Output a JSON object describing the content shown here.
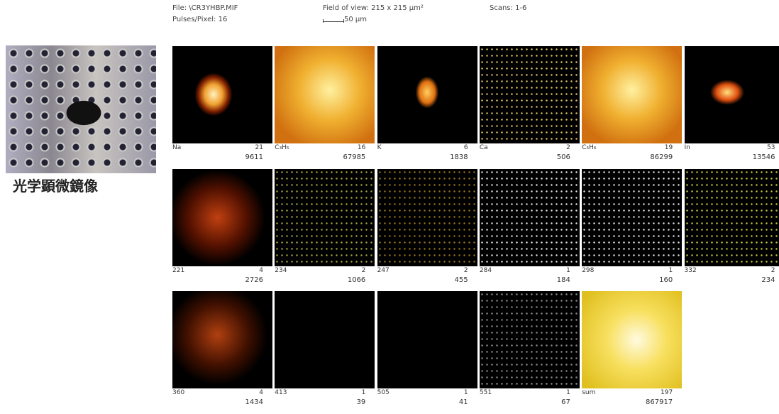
{
  "header": {
    "file": "File: \\CR3YHBP.MIF",
    "pulses": "Pulses/Pixel: 16",
    "field_of_view": "Field of view:  215 x 215  µm²",
    "scale_bar": "50 µm",
    "scans": "Scans:   1-6"
  },
  "microscope": {
    "caption": "光学顕微鏡像"
  },
  "panels": [
    {
      "label": "Na",
      "max": 21,
      "total": 9611
    },
    {
      "label": "C₃H₅",
      "max": 16,
      "total": 67985
    },
    {
      "label": "K",
      "max": 6,
      "total": 1838
    },
    {
      "label": "Ca",
      "max": 2,
      "total": 506
    },
    {
      "label": "C₅H₆",
      "max": 19,
      "total": 86299
    },
    {
      "label": "In",
      "max": 53,
      "total": 13546
    },
    {
      "label": "221",
      "max": 4,
      "total": 2726
    },
    {
      "label": "234",
      "max": 2,
      "total": 1066
    },
    {
      "label": "247",
      "max": 2,
      "total": 455
    },
    {
      "label": "284",
      "max": 1,
      "total": 184
    },
    {
      "label": "298",
      "max": 1,
      "total": 160
    },
    {
      "label": "332",
      "max": 2,
      "total": 234
    },
    {
      "label": "360",
      "max": 4,
      "total": 1434
    },
    {
      "label": "413",
      "max": 1,
      "total": 39
    },
    {
      "label": "505",
      "max": 1,
      "total": 41
    },
    {
      "label": "551",
      "max": 1,
      "total": 67
    },
    {
      "label": "sum",
      "max": 197,
      "total": 867917
    }
  ]
}
